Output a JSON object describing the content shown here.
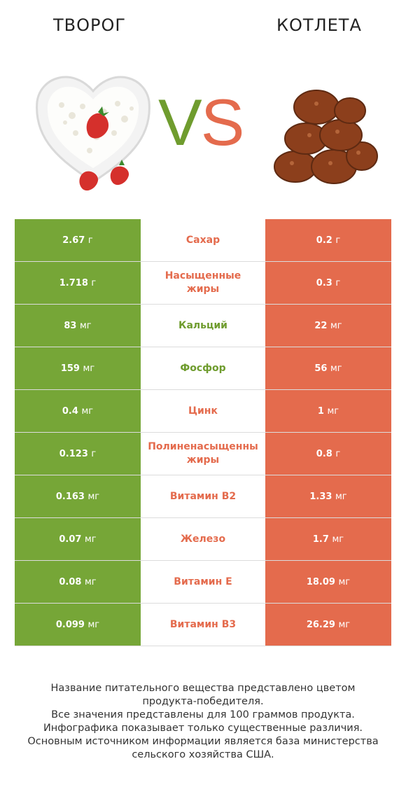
{
  "header": {
    "left_title": "ТВОРОГ",
    "right_title": "КОТЛЕТА",
    "vs_v": "V",
    "vs_s": "S"
  },
  "colors": {
    "left": "#76a637",
    "right": "#e46b4d",
    "left_text": "#6f9c2e"
  },
  "images": {
    "left": "cottage-cheese-with-strawberries",
    "right": "cutlets-pile"
  },
  "chart_data": {
    "type": "table",
    "series": [
      {
        "name": "Творог",
        "values": [
          "2.67 г",
          "1.718 г",
          "83 мг",
          "159 мг",
          "0.4 мг",
          "0.123 г",
          "0.163 мг",
          "0.07 мг",
          "0.08 мг",
          "0.099 мг"
        ]
      },
      {
        "name": "Котлета",
        "values": [
          "0.2 г",
          "0.3 г",
          "22 мг",
          "56 мг",
          "1 мг",
          "0.8 г",
          "1.33 мг",
          "1.7 мг",
          "18.09 мг",
          "26.29 мг"
        ]
      }
    ],
    "rows": [
      {
        "nutrient": [
          "Сахар"
        ],
        "left": "2.67",
        "left_unit": "г",
        "right": "0.2",
        "right_unit": "г",
        "winner": "right"
      },
      {
        "nutrient": [
          "Насыщенные",
          "жиры"
        ],
        "left": "1.718",
        "left_unit": "г",
        "right": "0.3",
        "right_unit": "г",
        "winner": "right"
      },
      {
        "nutrient": [
          "Кальций"
        ],
        "left": "83",
        "left_unit": "мг",
        "right": "22",
        "right_unit": "мг",
        "winner": "left"
      },
      {
        "nutrient": [
          "Фосфор"
        ],
        "left": "159",
        "left_unit": "мг",
        "right": "56",
        "right_unit": "мг",
        "winner": "left"
      },
      {
        "nutrient": [
          "Цинк"
        ],
        "left": "0.4",
        "left_unit": "мг",
        "right": "1",
        "right_unit": "мг",
        "winner": "right"
      },
      {
        "nutrient": [
          "Полиненасыщенны",
          "жиры"
        ],
        "left": "0.123",
        "left_unit": "г",
        "right": "0.8",
        "right_unit": "г",
        "winner": "right"
      },
      {
        "nutrient": [
          "Витамин B2"
        ],
        "left": "0.163",
        "left_unit": "мг",
        "right": "1.33",
        "right_unit": "мг",
        "winner": "right"
      },
      {
        "nutrient": [
          "Железо"
        ],
        "left": "0.07",
        "left_unit": "мг",
        "right": "1.7",
        "right_unit": "мг",
        "winner": "right"
      },
      {
        "nutrient": [
          "Витамин E"
        ],
        "left": "0.08",
        "left_unit": "мг",
        "right": "18.09",
        "right_unit": "мг",
        "winner": "right"
      },
      {
        "nutrient": [
          "Витамин B3"
        ],
        "left": "0.099",
        "left_unit": "мг",
        "right": "26.29",
        "right_unit": "мг",
        "winner": "right"
      }
    ]
  },
  "footnote": [
    "Название питательного вещества представлено цветом",
    "продукта-победителя.",
    "Все значения представлены для 100 граммов продукта.",
    "Инфографика показывает только существенные различия.",
    "Основным источником информации является база министерства",
    "сельского хозяйства США."
  ]
}
